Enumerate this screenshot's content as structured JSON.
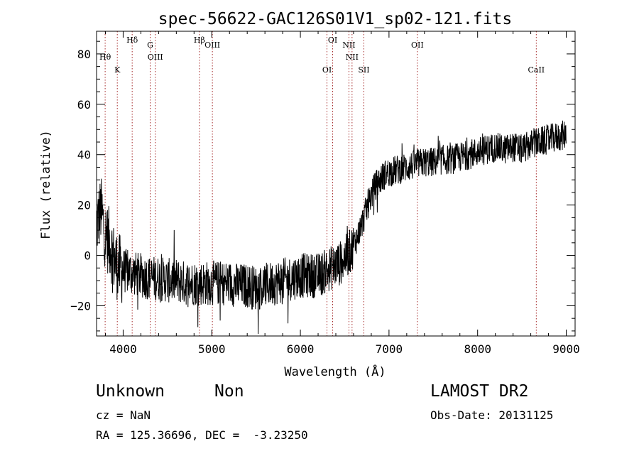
{
  "title": "spec-56622-GAC126S01V1_sp02-121.fits",
  "footer": {
    "class_label": "Unknown",
    "subclass_label": "Non",
    "survey": "LAMOST DR2",
    "cz_text": "cz = NaN",
    "obs_date_text": "Obs-Date: 20131125",
    "radec_text": "RA = 125.36696, DEC =  -3.23250"
  },
  "colors": {
    "spectrum": "#000000",
    "line_marker": "#a52a2a",
    "background": "#ffffff"
  },
  "chart_data": {
    "type": "line",
    "title": "spec-56622-GAC126S01V1_sp02-121.fits",
    "xlabel": "Wavelength (Å)",
    "ylabel": "Flux (relative)",
    "xlim": [
      3700,
      9100
    ],
    "ylim": [
      -32,
      89
    ],
    "xticks": [
      4000,
      5000,
      6000,
      7000,
      8000,
      9000
    ],
    "yticks": [
      -20,
      0,
      20,
      40,
      60,
      80
    ],
    "grid": false,
    "legend": "none",
    "spectral_lines": [
      {
        "label": "Hθ",
        "wavelength": 3797,
        "marker": "dotted"
      },
      {
        "label": "K",
        "wavelength": 3934,
        "marker": "dotted"
      },
      {
        "label": "Hδ",
        "wavelength": 4102,
        "marker": "dotted"
      },
      {
        "label": "G",
        "wavelength": 4305,
        "marker": "dotted"
      },
      {
        "label": "OIII",
        "wavelength": 4363,
        "marker": "dotted"
      },
      {
        "label": "Hβ",
        "wavelength": 4861,
        "marker": "dotted"
      },
      {
        "label": "OIII",
        "wavelength": 5007,
        "marker": "dotted"
      },
      {
        "label": "OI",
        "wavelength": 6300,
        "marker": "dotted"
      },
      {
        "label": "OI",
        "wavelength": 6364,
        "marker": "dotted"
      },
      {
        "label": "NII",
        "wavelength": 6548,
        "marker": "dotted"
      },
      {
        "label": "NII",
        "wavelength": 6583,
        "marker": "dotted"
      },
      {
        "label": "SII",
        "wavelength": 6716,
        "marker": "dotted"
      },
      {
        "label": "OII",
        "wavelength": 7320,
        "marker": "dotted"
      },
      {
        "label": "CaII",
        "wavelength": 8662,
        "marker": "dotted"
      }
    ],
    "series": [
      {
        "x": [
          3700,
          3750,
          3800,
          3850,
          3900,
          3950,
          4000,
          4100,
          4200,
          4300,
          4400,
          4500,
          4600,
          4700,
          4800,
          4900,
          5000,
          5100,
          5200,
          5300,
          5400,
          5500,
          5600,
          5700,
          5800,
          5900,
          6000,
          6100,
          6200,
          6250,
          6300,
          6350,
          6400,
          6450,
          6500,
          6550,
          6600,
          6650,
          6700,
          6750,
          6800,
          6850,
          6900,
          6950,
          7000,
          7100,
          7200,
          7300,
          7400,
          7500,
          7600,
          7700,
          7800,
          7900,
          8000,
          8100,
          8200,
          8300,
          8400,
          8500,
          8600,
          8700,
          8800,
          8900,
          9000
        ],
        "values": [
          12,
          18,
          8,
          5,
          -2,
          -5,
          -6,
          -7,
          -8,
          -9,
          -9,
          -10,
          -10,
          -11,
          -11,
          -11,
          -11,
          -11,
          -11,
          -12,
          -12,
          -13,
          -12,
          -11,
          -10,
          -9,
          -8,
          -8,
          -8,
          -7,
          -6,
          -5,
          -4,
          -3,
          -1,
          1,
          4,
          8,
          13,
          19,
          24,
          28,
          30,
          32,
          33,
          34,
          35,
          36,
          37,
          37,
          38,
          38,
          39,
          40,
          41,
          42,
          43,
          42,
          43,
          42,
          44,
          45,
          46,
          47,
          48
        ]
      }
    ]
  }
}
